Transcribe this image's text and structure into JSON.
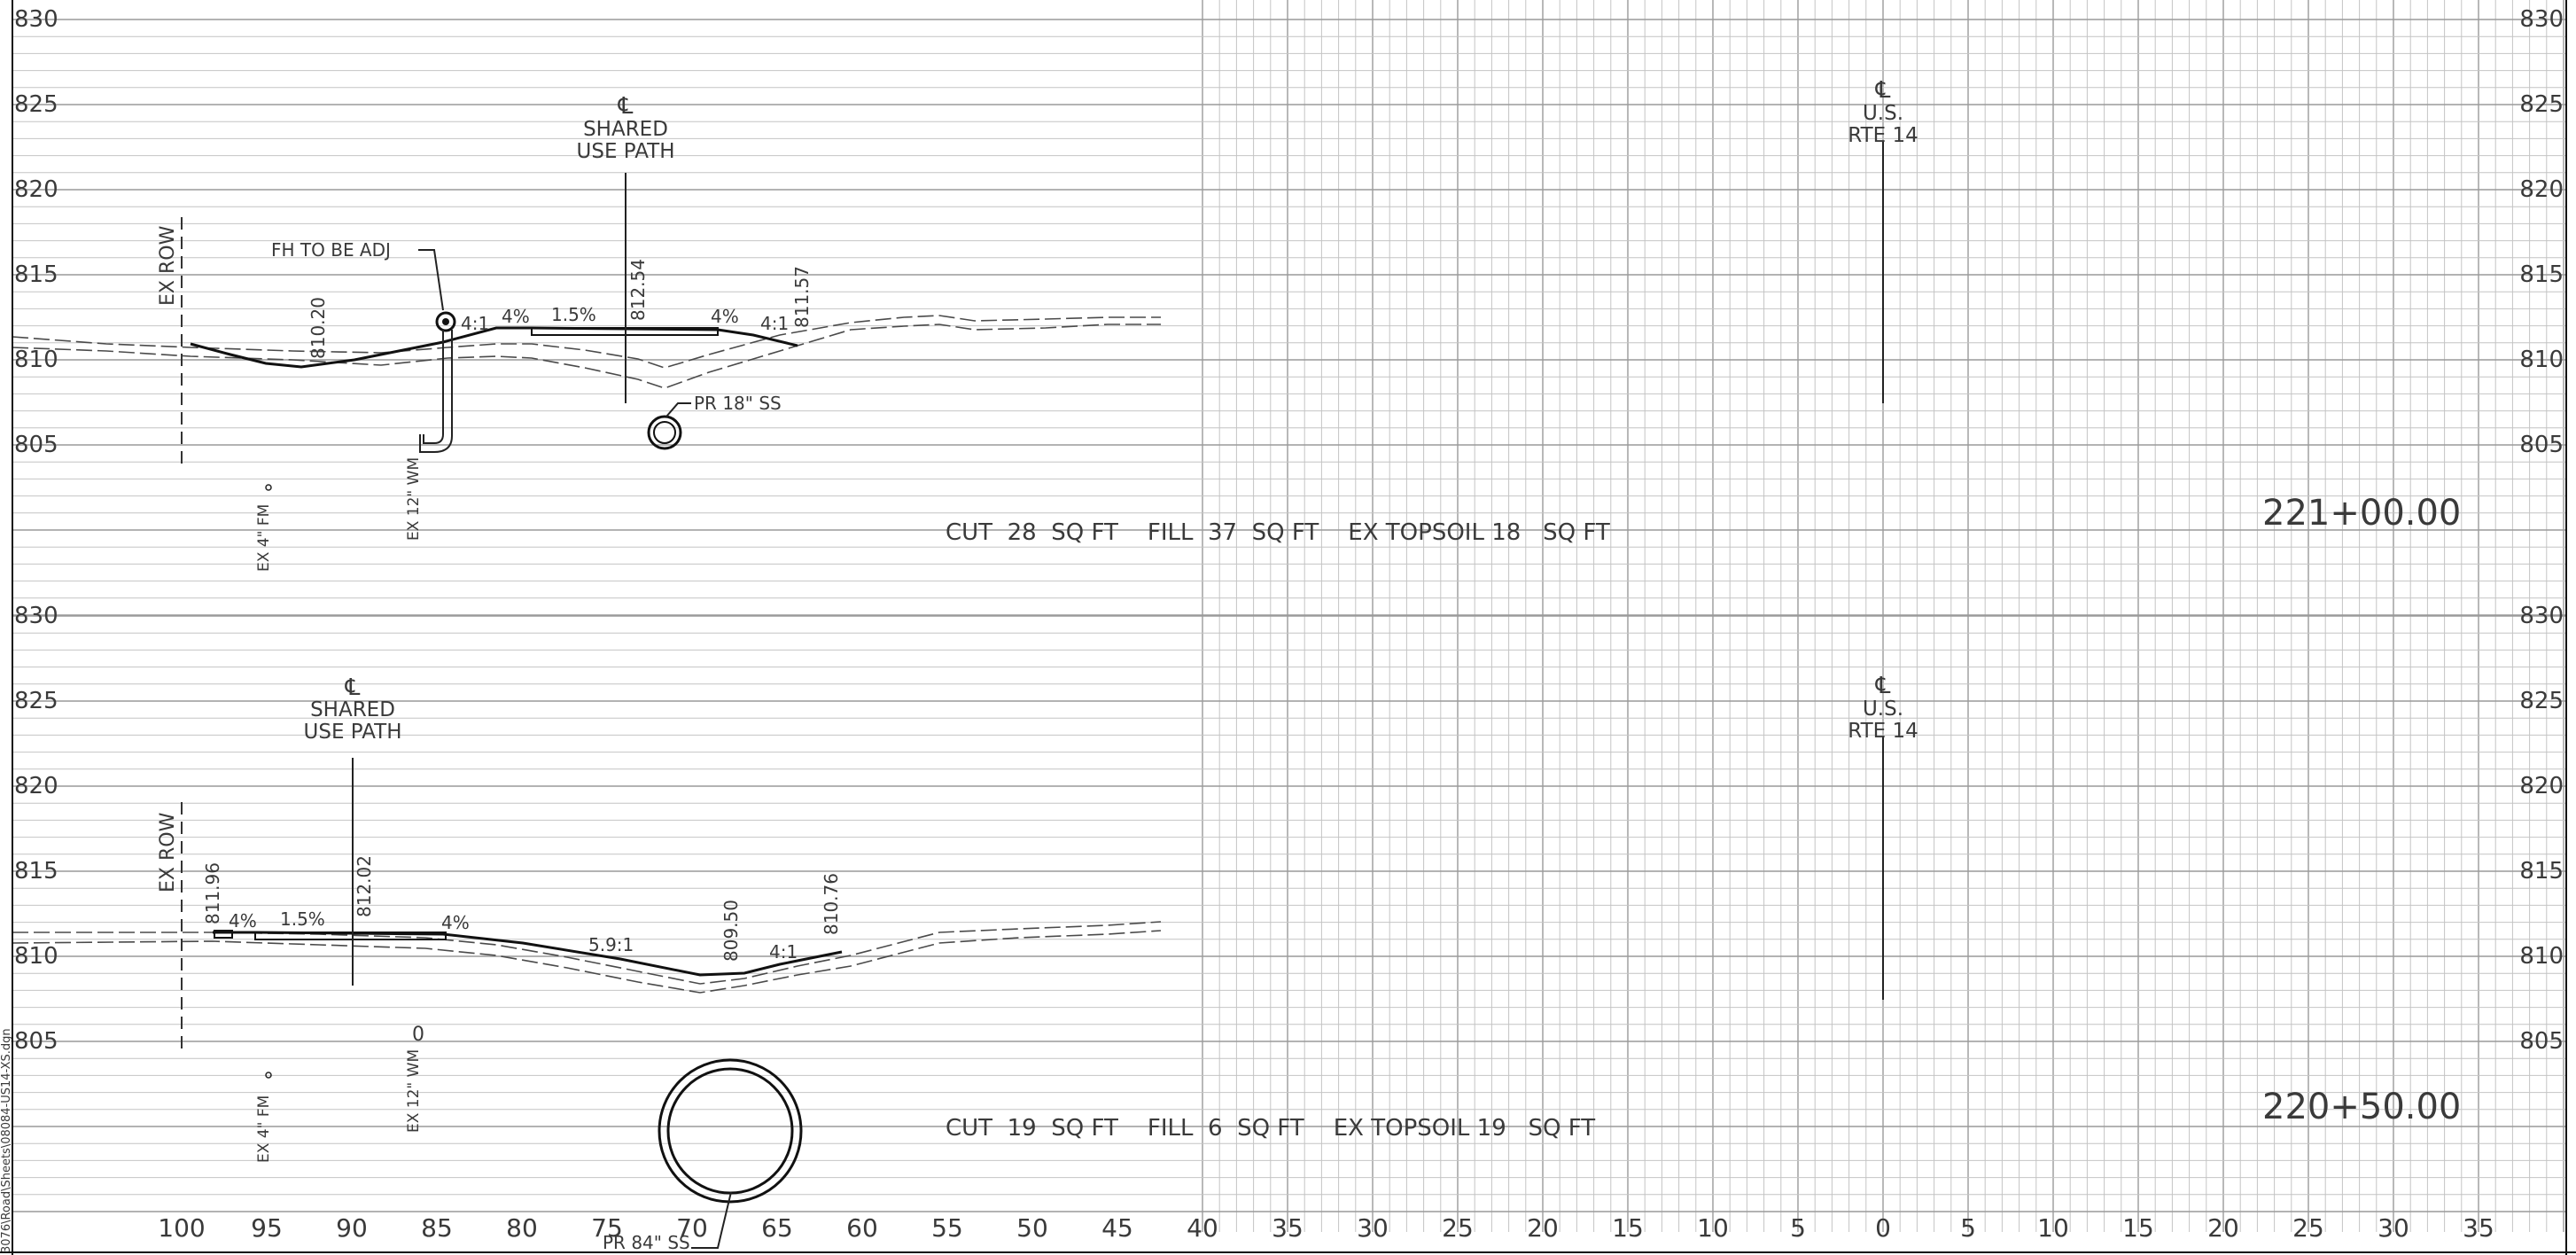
{
  "sheet": {
    "file_path": "3076\\Road\\Sheets\\08084-US14-XS.dgn",
    "x_axis_labels": [
      "100",
      "95",
      "90",
      "85",
      "80",
      "75",
      "70",
      "65",
      "60",
      "55",
      "50",
      "45",
      "40",
      "35",
      "30",
      "25",
      "20",
      "15",
      "10",
      "5",
      "0",
      "5",
      "10",
      "15",
      "20",
      "25",
      "30",
      "35"
    ],
    "elev_labels": [
      "830",
      "825",
      "820",
      "815",
      "810",
      "805"
    ]
  },
  "section_top": {
    "station": "221+00.00",
    "shared_path_mark": "℄",
    "shared_path_line1": "SHARED",
    "shared_path_line2": "USE PATH",
    "route_mark": "℄",
    "route_line1": "U.S.",
    "route_line2": "RTE 14",
    "ex_row": "EX ROW",
    "fh_label": "FH TO BE ADJ",
    "elev_810_20": "810.20",
    "elev_812_54": "812.54",
    "elev_811_57": "811.57",
    "slope_4_1_left": "4:1",
    "slope_4pct_left": "4%",
    "slope_1_5pct": "1.5%",
    "slope_4pct_right": "4%",
    "slope_4_1_right": "4:1",
    "pipe_label": "PR 18\" SS",
    "ex_fm": "EX 4\" FM",
    "ex_wm": "EX 12\" WM",
    "quantities": "CUT  28  SQ FT    FILL  37  SQ FT    EX TOPSOIL 18   SQ FT"
  },
  "section_bottom": {
    "station": "220+50.00",
    "shared_path_mark": "℄",
    "shared_path_line1": "SHARED",
    "shared_path_line2": "USE PATH",
    "route_mark": "℄",
    "route_line1": "U.S.",
    "route_line2": "RTE 14",
    "ex_row": "EX ROW",
    "elev_811_96": "811.96",
    "elev_812_02": "812.02",
    "elev_809_50": "809.50",
    "elev_810_76": "810.76",
    "slope_4pct_left": "4%",
    "slope_1_5pct": "1.5%",
    "slope_4pct_right": "4%",
    "slope_5_9_1": "5.9:1",
    "slope_4_1": "4:1",
    "pipe_label": "PR 84\" SS",
    "ex_fm": "EX 4\" FM",
    "ex_wm": "EX 12\" WM",
    "wm_marker": "0",
    "quantities": "CUT  19  SQ FT    FILL  6  SQ FT    EX TOPSOIL 19   SQ FT"
  }
}
